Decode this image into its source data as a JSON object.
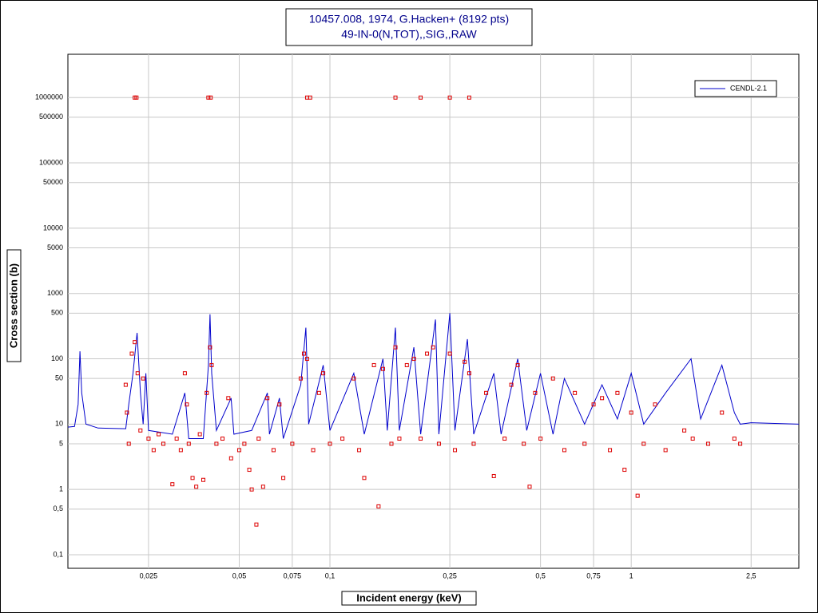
{
  "chart_data": {
    "type": "line",
    "title": "10457.008, 1974, G.Hacken+ (8192 pts)",
    "subtitle": "49-IN-0(N,TOT),,SIG,,RAW",
    "x_label": "Incident energy (keV)",
    "y_label": "Cross section (b)",
    "xscale": "log",
    "yscale": "log",
    "grid": true,
    "legend": "upper right",
    "xlim": [
      0.0135,
      3.6
    ],
    "ylim": [
      0.062,
      4600000
    ],
    "xticks": [
      {
        "value": 0.025,
        "label": "0,025"
      },
      {
        "value": 0.05,
        "label": "0,05"
      },
      {
        "value": 0.075,
        "label": "0,075"
      },
      {
        "value": 0.1,
        "label": "0,1"
      },
      {
        "value": 0.25,
        "label": "0,25"
      },
      {
        "value": 0.5,
        "label": "0,5"
      },
      {
        "value": 0.75,
        "label": "0,75"
      },
      1,
      {
        "value": 2.5,
        "label": "2,5"
      }
    ],
    "yticks": [
      {
        "value": 0.1,
        "label": "0,1"
      },
      {
        "value": 0.5,
        "label": "0,5"
      },
      1,
      5,
      10,
      50,
      100,
      500,
      1000,
      5000,
      10000,
      50000,
      100000,
      500000,
      1000000
    ],
    "series": [
      {
        "name": "CENDL-2.1",
        "color": "#0000cc",
        "style": "line",
        "x": [
          0.0135,
          0.0142,
          0.0146,
          0.0148,
          0.015,
          0.0155,
          0.017,
          0.021,
          0.0215,
          0.0222,
          0.0229,
          0.0235,
          0.024,
          0.0245,
          0.025,
          0.03,
          0.033,
          0.034,
          0.038,
          0.0395,
          0.04,
          0.0405,
          0.042,
          0.047,
          0.048,
          0.055,
          0.062,
          0.063,
          0.068,
          0.07,
          0.08,
          0.0832,
          0.085,
          0.095,
          0.1,
          0.12,
          0.13,
          0.15,
          0.155,
          0.165,
          0.17,
          0.19,
          0.2,
          0.224,
          0.23,
          0.25,
          0.26,
          0.286,
          0.3,
          0.35,
          0.37,
          0.42,
          0.45,
          0.5,
          0.55,
          0.6,
          0.7,
          0.8,
          0.9,
          1.0,
          1.1,
          1.3,
          1.58,
          1.7,
          2.0,
          2.2,
          2.3,
          2.5,
          3.6
        ],
        "values": [
          9,
          9.2,
          20,
          130,
          30,
          10,
          8.7,
          8.5,
          20,
          60,
          250,
          30,
          10,
          60,
          8,
          7,
          30,
          6,
          6,
          80,
          480,
          60,
          8,
          25,
          7,
          8,
          30,
          7,
          25,
          6,
          40,
          300,
          10,
          80,
          8,
          60,
          7,
          100,
          8,
          300,
          8,
          150,
          7,
          400,
          7,
          500,
          8,
          200,
          7,
          60,
          7,
          100,
          8,
          60,
          7,
          50,
          10,
          40,
          12,
          60,
          10,
          30,
          100,
          12,
          80,
          15,
          10,
          10.5,
          10
        ]
      },
      {
        "color": "#dd0000",
        "style": "marker",
        "x": [
          0.0225,
          0.0228,
          0.0395,
          0.0402,
          0.084,
          0.086,
          0.165,
          0.2,
          0.25,
          0.29,
          0.021,
          0.0212,
          0.0215,
          0.022,
          0.0225,
          0.023,
          0.0235,
          0.024,
          0.025,
          0.026,
          0.027,
          0.028,
          0.03,
          0.031,
          0.032,
          0.033,
          0.0335,
          0.034,
          0.035,
          0.036,
          0.037,
          0.038,
          0.039,
          0.04,
          0.0405,
          0.042,
          0.044,
          0.046,
          0.047,
          0.05,
          0.052,
          0.054,
          0.055,
          0.057,
          0.058,
          0.06,
          0.062,
          0.065,
          0.068,
          0.07,
          0.075,
          0.08,
          0.082,
          0.084,
          0.088,
          0.092,
          0.095,
          0.1,
          0.11,
          0.12,
          0.125,
          0.13,
          0.14,
          0.145,
          0.15,
          0.16,
          0.165,
          0.17,
          0.18,
          0.19,
          0.2,
          0.21,
          0.22,
          0.23,
          0.25,
          0.26,
          0.28,
          0.29,
          0.3,
          0.33,
          0.35,
          0.38,
          0.4,
          0.42,
          0.44,
          0.46,
          0.48,
          0.5,
          0.55,
          0.6,
          0.65,
          0.7,
          0.75,
          0.8,
          0.85,
          0.9,
          0.95,
          1.0,
          1.05,
          1.1,
          1.2,
          1.3,
          1.5,
          1.6,
          1.8,
          2.0,
          2.2,
          2.3
        ],
        "values": [
          1000000,
          1000000,
          1000000,
          1000000,
          1000000,
          1000000,
          1000000,
          1000000,
          1000000,
          1000000,
          40,
          15,
          5,
          120,
          180,
          60,
          8,
          50,
          6,
          4,
          7,
          5,
          1.2,
          6,
          4,
          60,
          20,
          5,
          1.5,
          1.1,
          7,
          1.4,
          30,
          150,
          80,
          5,
          6,
          25,
          3,
          4,
          5,
          2,
          1,
          0.29,
          6,
          1.1,
          25,
          4,
          20,
          1.5,
          5,
          50,
          120,
          100,
          4,
          30,
          60,
          5,
          6,
          50,
          4,
          1.5,
          80,
          0.55,
          70,
          5,
          150,
          6,
          80,
          100,
          6,
          120,
          150,
          5,
          120,
          4,
          90,
          60,
          5,
          30,
          1.6,
          6,
          40,
          80,
          5,
          1.1,
          30,
          6,
          50,
          4,
          30,
          5,
          20,
          25,
          4,
          30,
          2,
          15,
          0.8,
          5,
          20,
          4,
          8,
          6,
          5,
          15,
          6,
          5
        ]
      }
    ]
  }
}
